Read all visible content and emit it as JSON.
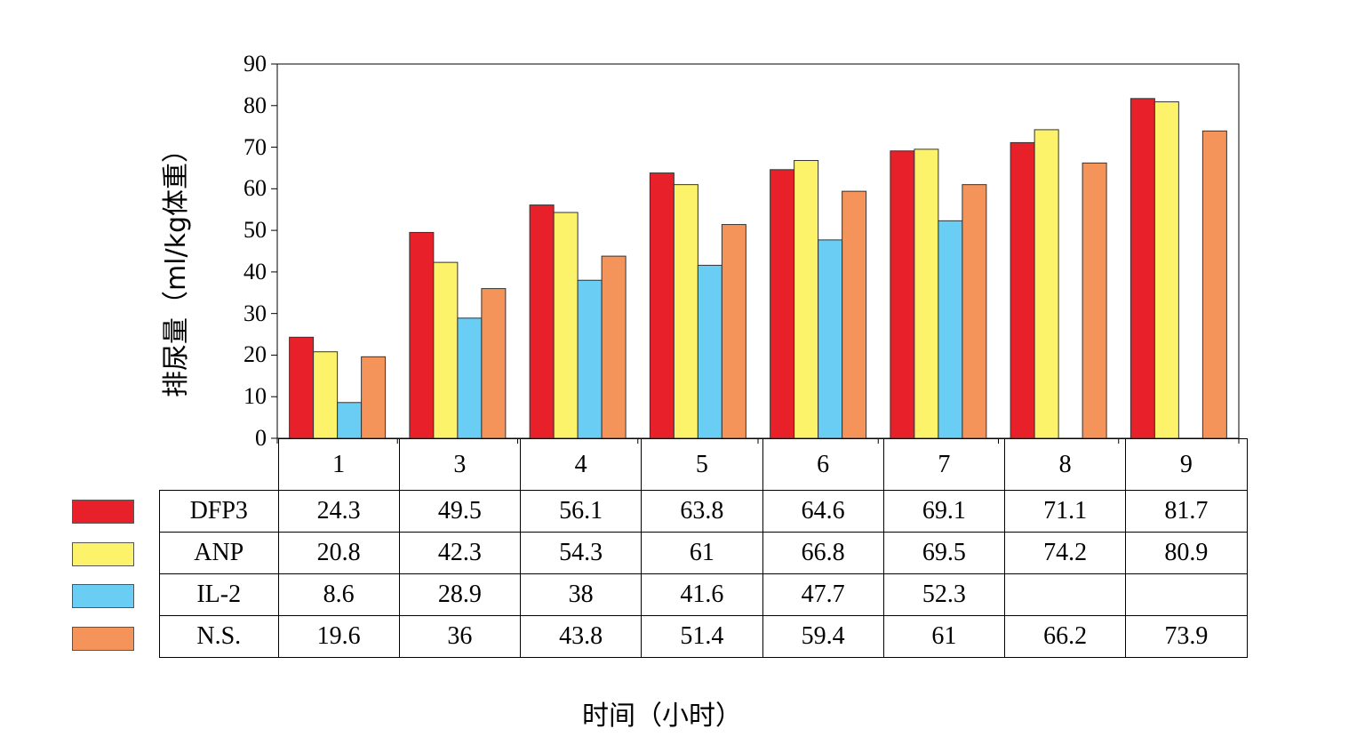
{
  "chart_data": {
    "type": "bar",
    "title": "",
    "xlabel": "时间（小时）",
    "ylabel": "排尿量（ml/kg体重）",
    "ylim": [
      0,
      90
    ],
    "yticks": [
      0,
      10,
      20,
      30,
      40,
      50,
      60,
      70,
      80,
      90
    ],
    "grid": false,
    "legend": "table-left",
    "categories": [
      "1",
      "3",
      "4",
      "5",
      "6",
      "7",
      "8",
      "9"
    ],
    "series": [
      {
        "name": "DFP3",
        "color": "#e8202a",
        "values": [
          24.3,
          49.5,
          56.1,
          63.8,
          64.6,
          69.1,
          71.1,
          81.7
        ],
        "labels": [
          "24.3",
          "49.5",
          "56.1",
          "63.8",
          "64.6",
          "69.1",
          "71.1",
          "81.7"
        ]
      },
      {
        "name": "ANP",
        "color": "#fdf36b",
        "values": [
          20.8,
          42.3,
          54.3,
          61,
          66.8,
          69.5,
          74.2,
          80.9
        ],
        "labels": [
          "20.8",
          "42.3",
          "54.3",
          "61",
          "66.8",
          "69.5",
          "74.2",
          "80.9"
        ]
      },
      {
        "name": "IL-2",
        "color": "#69cdf4",
        "values": [
          8.6,
          28.9,
          38,
          41.6,
          47.7,
          52.3,
          null,
          null
        ],
        "labels": [
          "8.6",
          "28.9",
          "38",
          "41.6",
          "47.7",
          "52.3",
          "",
          ""
        ]
      },
      {
        "name": "N.S.",
        "color": "#f5945a",
        "values": [
          19.6,
          36,
          43.8,
          51.4,
          59.4,
          61,
          66.2,
          73.9
        ],
        "labels": [
          "19.6",
          "36",
          "43.8",
          "51.4",
          "59.4",
          "61",
          "66.2",
          "73.9"
        ]
      }
    ]
  }
}
